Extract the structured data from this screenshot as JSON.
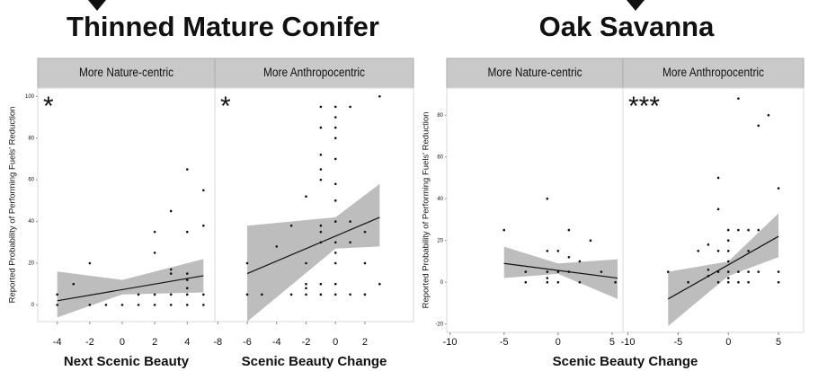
{
  "chart_data": [
    {
      "type": "scatter",
      "title": "Thinned Mature Conifer",
      "y_label": "Reported Probability of Performing Fuels' Reduction",
      "ylim": [
        -8,
        104
      ],
      "yticks": [
        0,
        20,
        40,
        60,
        80,
        100
      ],
      "panels": [
        {
          "facet": "More Nature-centric",
          "annotation": "*",
          "x_label": "Next Scenic Beauty",
          "xlim": [
            -5.2,
            5.7
          ],
          "xticks": [
            -4,
            -2,
            0,
            2,
            4
          ],
          "x": [
            -4,
            -4,
            -3,
            -2,
            -2,
            -1,
            0,
            1,
            1,
            2,
            2,
            2,
            2,
            3,
            3,
            3,
            3,
            3,
            4,
            4,
            4,
            4,
            4,
            4,
            4,
            5,
            5,
            5,
            5
          ],
          "y": [
            5,
            0,
            10,
            20,
            0,
            0,
            0,
            5,
            0,
            35,
            25,
            5,
            0,
            45,
            17,
            15,
            5,
            0,
            65,
            35,
            15,
            12,
            8,
            5,
            0,
            55,
            38,
            5,
            0
          ],
          "fit": {
            "x": [
              -4,
              5
            ],
            "y": [
              2,
              14
            ]
          },
          "band": {
            "x": [
              -4,
              0,
              5
            ],
            "upper": [
              16,
              12,
              22
            ],
            "lower": [
              -6,
              5,
              6
            ]
          }
        },
        {
          "facet": "More Anthropocentric",
          "annotation": "*",
          "x_label": "Scenic Beauty Change",
          "xlim": [
            -8.2,
            5.3
          ],
          "xticks": [
            -8,
            -6,
            -4,
            -2,
            0,
            2
          ],
          "x": [
            -6,
            -6,
            -5,
            -4,
            -3,
            -3,
            -2,
            -2,
            -2,
            -2,
            -2,
            -1,
            -1,
            -1,
            -1,
            -1,
            -1,
            -1,
            -1,
            -1,
            -1,
            0,
            0,
            0,
            0,
            0,
            0,
            0,
            0,
            0,
            0,
            0,
            0,
            0,
            1,
            1,
            1,
            1,
            2,
            2,
            2,
            3,
            3
          ],
          "y": [
            20,
            5,
            5,
            28,
            38,
            5,
            52,
            20,
            10,
            8,
            5,
            95,
            85,
            72,
            65,
            60,
            38,
            35,
            30,
            10,
            5,
            95,
            90,
            85,
            80,
            70,
            58,
            50,
            40,
            30,
            25,
            20,
            10,
            5,
            95,
            40,
            30,
            5,
            35,
            20,
            5,
            100,
            10
          ],
          "fit": {
            "x": [
              -6,
              3
            ],
            "y": [
              15,
              42
            ]
          },
          "band": {
            "x": [
              -6,
              0,
              3
            ],
            "upper": [
              38,
              42,
              58
            ],
            "lower": [
              -8,
              27,
              28
            ]
          }
        }
      ]
    },
    {
      "type": "scatter",
      "title": "Oak Savanna",
      "y_label": "Reported Probability of Performing Fuels' Reduction",
      "x_label": "Scenic Beauty Change",
      "ylim": [
        -24,
        93
      ],
      "yticks": [
        -20,
        0,
        20,
        40,
        60,
        80
      ],
      "panels": [
        {
          "facet": "More Nature-centric",
          "xlim": [
            -10.3,
            6
          ],
          "xticks": [
            -10,
            -5,
            0,
            5
          ],
          "x": [
            -5,
            -3,
            -3,
            -1,
            -1,
            -1,
            -1,
            -1,
            0,
            0,
            0,
            1,
            1,
            1,
            2,
            2,
            3,
            4,
            5.3
          ],
          "y": [
            25,
            5,
            0,
            40,
            15,
            5,
            2,
            0,
            15,
            5,
            0,
            25,
            12,
            5,
            10,
            0,
            20,
            5,
            0
          ],
          "fit": {
            "x": [
              -5,
              5.5
            ],
            "y": [
              9,
              2
            ]
          },
          "band": {
            "x": [
              -5,
              0,
              5.5
            ],
            "upper": [
              17,
              9,
              11
            ],
            "lower": [
              2,
              4,
              -8
            ]
          }
        },
        {
          "facet": "More Anthropocentric",
          "annotation": "***",
          "xlim": [
            -10.5,
            7.5
          ],
          "xticks": [
            -10,
            -5,
            0,
            5
          ],
          "x": [
            -6,
            -4,
            -3,
            -2,
            -2,
            -2,
            -1,
            -1,
            -1,
            -1,
            -1,
            0,
            0,
            0,
            0,
            0,
            0,
            0,
            1,
            1,
            1,
            1,
            2,
            2,
            2,
            2,
            3,
            3,
            3,
            4,
            5,
            5,
            5
          ],
          "y": [
            5,
            0,
            15,
            18,
            6,
            3,
            50,
            35,
            15,
            5,
            0,
            25,
            20,
            15,
            10,
            5,
            2,
            0,
            88,
            25,
            5,
            0,
            25,
            15,
            5,
            0,
            75,
            25,
            5,
            80,
            45,
            5,
            0
          ],
          "fit": {
            "x": [
              -6,
              5
            ],
            "y": [
              -8,
              22
            ]
          },
          "band": {
            "x": [
              -6,
              0,
              5
            ],
            "upper": [
              5,
              10,
              33
            ],
            "lower": [
              -21,
              3,
              12
            ]
          }
        }
      ]
    }
  ]
}
